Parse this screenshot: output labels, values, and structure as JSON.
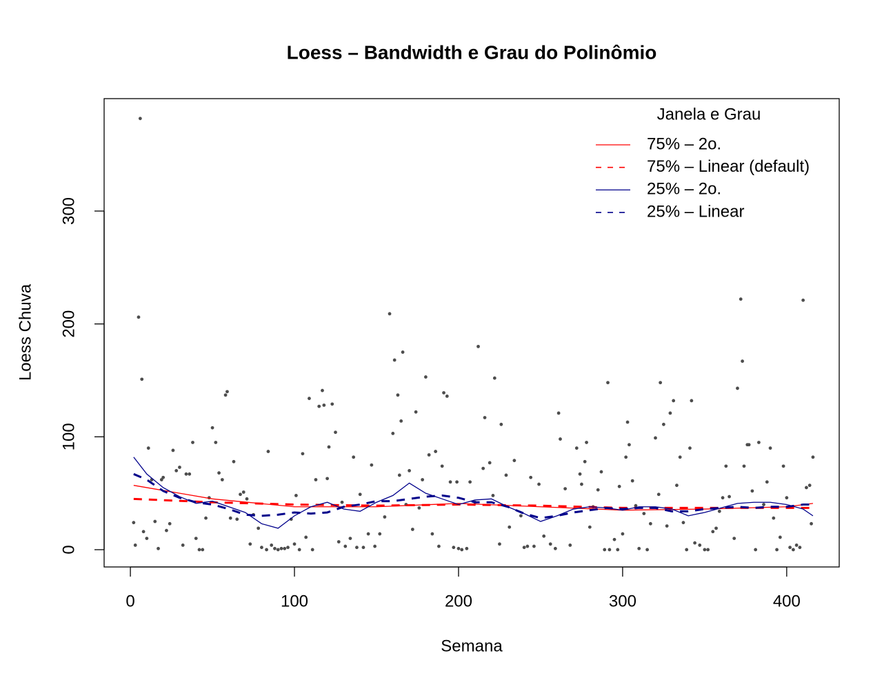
{
  "chart_data": {
    "type": "scatter",
    "title": "Loess – Bandwidth e Grau do Polinômio",
    "x_label": "Semana",
    "y_label": "Loess Chuva",
    "xlim": [
      -16,
      432
    ],
    "ylim": [
      -15.3,
      399.6
    ],
    "xticks": [
      0,
      100,
      200,
      300,
      400
    ],
    "yticks": [
      0,
      100,
      200,
      300
    ],
    "legend_title": "Janela e Grau",
    "legend_position": "top-right",
    "points": {
      "color": "#4d4d4d",
      "x": [
        2,
        3,
        5,
        6,
        7,
        8,
        10,
        11,
        13,
        15,
        17,
        19,
        20,
        22,
        24,
        26,
        28,
        30,
        32,
        34,
        36,
        38,
        40,
        42,
        44,
        46,
        48,
        50,
        52,
        54,
        56,
        58,
        59,
        61,
        63,
        65,
        67,
        69,
        71,
        73,
        75,
        78,
        80,
        83,
        84,
        86,
        88,
        90,
        92,
        94,
        96,
        98,
        100,
        101,
        103,
        105,
        107,
        109,
        111,
        113,
        115,
        117,
        118,
        120,
        121,
        123,
        125,
        127,
        129,
        131,
        134,
        136,
        138,
        140,
        142,
        145,
        147,
        149,
        152,
        155,
        158,
        160,
        161,
        163,
        164,
        165,
        166,
        168,
        170,
        172,
        174,
        176,
        178,
        180,
        182,
        184,
        186,
        188,
        190,
        191,
        193,
        195,
        197,
        199,
        200,
        202,
        205,
        207,
        210,
        212,
        215,
        216,
        219,
        221,
        222,
        225,
        226,
        229,
        231,
        234,
        238,
        240,
        242,
        244,
        246,
        249,
        252,
        256,
        259,
        261,
        262,
        265,
        268,
        272,
        274,
        275,
        277,
        278,
        280,
        282,
        285,
        287,
        289,
        291,
        292,
        295,
        297,
        298,
        300,
        302,
        303,
        304,
        306,
        308,
        310,
        313,
        315,
        317,
        320,
        322,
        323,
        325,
        327,
        329,
        331,
        333,
        335,
        337,
        339,
        341,
        342,
        344,
        347,
        350,
        352,
        355,
        357,
        359,
        361,
        363,
        365,
        368,
        370,
        372,
        373,
        374,
        376,
        377,
        379,
        381,
        383,
        386,
        388,
        390,
        392,
        394,
        396,
        398,
        400,
        402,
        404,
        406,
        408,
        410,
        412,
        414,
        415,
        416
      ],
      "y": [
        24,
        4,
        206,
        382,
        151,
        16,
        10,
        90,
        62,
        25,
        1,
        62,
        64,
        17,
        23,
        88,
        70,
        73,
        4,
        67,
        67,
        95,
        10,
        0,
        0,
        28,
        46,
        108,
        95,
        68,
        62,
        137,
        140,
        28,
        78,
        27,
        49,
        51,
        45,
        5,
        31,
        19,
        2,
        0,
        87,
        4,
        1,
        0,
        1,
        1,
        2,
        27,
        5,
        48,
        0,
        85,
        11,
        134,
        0,
        62,
        127,
        141,
        128,
        63,
        91,
        129,
        104,
        7,
        42,
        3,
        10,
        82,
        2,
        49,
        2,
        14,
        75,
        3,
        14,
        29,
        209,
        103,
        168,
        137,
        66,
        114,
        175,
        40,
        70,
        18,
        122,
        37,
        62,
        153,
        84,
        14,
        87,
        3,
        74,
        139,
        136,
        60,
        2,
        60,
        1,
        0,
        1,
        60,
        42,
        180,
        72,
        117,
        77,
        48,
        152,
        5,
        111,
        66,
        20,
        79,
        30,
        2,
        3,
        64,
        3,
        58,
        12,
        5,
        1,
        121,
        98,
        54,
        4,
        90,
        67,
        58,
        78,
        95,
        20,
        38,
        53,
        69,
        0,
        148,
        0,
        9,
        0,
        56,
        14,
        82,
        113,
        93,
        61,
        39,
        1,
        32,
        0,
        23,
        99,
        49,
        148,
        111,
        21,
        121,
        132,
        57,
        82,
        24,
        0,
        90,
        132,
        6,
        4,
        0,
        0,
        16,
        19,
        34,
        46,
        74,
        47,
        10,
        143,
        222,
        167,
        74,
        93,
        93,
        52,
        0,
        95,
        40,
        60,
        90,
        28,
        0,
        11,
        74,
        46,
        2,
        0,
        4,
        2,
        221,
        55,
        57,
        23,
        82
      ]
    },
    "series": [
      {
        "name": "75% – 2o.",
        "color": "#ff0000",
        "dash": "solid",
        "width": 1.3,
        "x": [
          2,
          50,
          100,
          150,
          200,
          250,
          300,
          350,
          400,
          416
        ],
        "values": [
          57,
          45,
          38,
          38,
          41,
          38,
          35,
          36,
          38,
          41
        ]
      },
      {
        "name": "75% – Linear (default)",
        "color": "#ff0000",
        "dash": "dashed",
        "width": 3,
        "x": [
          2,
          50,
          100,
          150,
          200,
          250,
          300,
          350,
          400,
          416
        ],
        "values": [
          45,
          42,
          40,
          39,
          40,
          39,
          37,
          37,
          37,
          37
        ]
      },
      {
        "name": "25% – 2o.",
        "color": "#00008b",
        "dash": "solid",
        "width": 1.3,
        "x": [
          2,
          10,
          20,
          30,
          40,
          50,
          60,
          70,
          80,
          90,
          100,
          110,
          120,
          130,
          140,
          150,
          160,
          170,
          180,
          190,
          200,
          210,
          220,
          230,
          240,
          250,
          260,
          270,
          280,
          290,
          300,
          310,
          320,
          330,
          340,
          350,
          360,
          370,
          380,
          390,
          400,
          410,
          416
        ],
        "values": [
          82,
          67,
          55,
          47,
          41,
          43,
          38,
          33,
          23,
          19,
          30,
          38,
          42,
          36,
          34,
          42,
          48,
          59,
          50,
          45,
          40,
          44,
          45,
          38,
          32,
          25,
          30,
          36,
          38,
          37,
          35,
          38,
          38,
          36,
          30,
          33,
          37,
          41,
          42,
          42,
          40,
          36,
          30
        ]
      },
      {
        "name": "25% – Linear",
        "color": "#00008b",
        "dash": "dashed",
        "width": 3,
        "x": [
          2,
          10,
          20,
          30,
          40,
          50,
          60,
          70,
          80,
          90,
          100,
          110,
          120,
          130,
          140,
          150,
          160,
          170,
          180,
          190,
          200,
          210,
          220,
          230,
          240,
          250,
          260,
          270,
          280,
          290,
          300,
          310,
          320,
          330,
          340,
          350,
          360,
          370,
          380,
          390,
          400,
          410,
          416
        ],
        "values": [
          67,
          62,
          52,
          46,
          42,
          40,
          36,
          31,
          30,
          31,
          33,
          32,
          33,
          38,
          40,
          43,
          43,
          45,
          47,
          48,
          46,
          42,
          42,
          38,
          32,
          28,
          30,
          33,
          35,
          37,
          36,
          37,
          37,
          34,
          34,
          36,
          37,
          38,
          37,
          38,
          38,
          40,
          40
        ]
      }
    ]
  }
}
